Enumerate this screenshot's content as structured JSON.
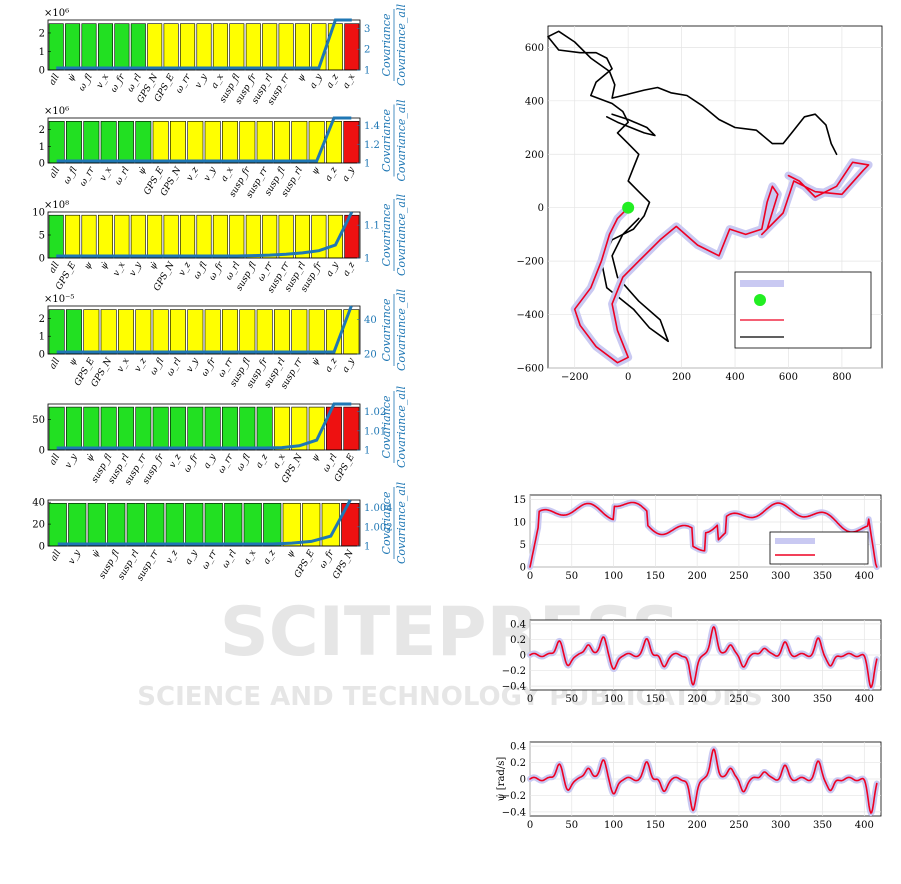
{
  "colors": {
    "green": "#22e022",
    "yellow": "#ffff00",
    "red": "#ee1111",
    "blue": "#1f77b4",
    "lilac": "#c9c9f2",
    "redline": "#ee0022",
    "black": "#000000"
  },
  "watermark": {
    "line1": "SCITEPRESS",
    "line2": "SCIENCE AND TECHNOLOGY PUBLICATIONS"
  },
  "chart_data": [
    {
      "type": "bar",
      "exponent": "×10⁶",
      "ylim": [
        0,
        2.7
      ],
      "yticks": [
        "0",
        "1",
        "2"
      ],
      "ylabel_right": "Covariance / Covariance_all",
      "y2ticks": [
        "1",
        "2",
        "3"
      ],
      "categories": [
        "all",
        "ψ̇",
        "ω_fl",
        "v_x",
        "ω_fr",
        "ω_rl",
        "GPS_N",
        "GPS_E",
        "ω_rr",
        "v_y",
        "a_x",
        "susp_fl",
        "susp_fr",
        "susp_rl",
        "susp_rr",
        "ψ",
        "a_y",
        "a_z",
        "a_x"
      ],
      "values": [
        2.5,
        2.5,
        2.5,
        2.5,
        2.5,
        2.5,
        2.5,
        2.5,
        2.5,
        2.5,
        2.5,
        2.5,
        2.5,
        2.5,
        2.5,
        2.5,
        2.5,
        2.5,
        2.5
      ],
      "colors": [
        "G",
        "G",
        "G",
        "G",
        "G",
        "G",
        "Y",
        "Y",
        "Y",
        "Y",
        "Y",
        "Y",
        "Y",
        "Y",
        "Y",
        "Y",
        "Y",
        "Y",
        "R"
      ],
      "line_pos": [
        0,
        0,
        0,
        0,
        0,
        0,
        0,
        0,
        0,
        0,
        0,
        0,
        0,
        0,
        0,
        0,
        0,
        1.05,
        1.05
      ]
    },
    {
      "type": "bar",
      "exponent": "×10⁶",
      "ylim": [
        0,
        2.7
      ],
      "yticks": [
        "0",
        "1",
        "2"
      ],
      "ylabel_right": "Covariance / Covariance_all",
      "y2ticks": [
        "1",
        "1.2",
        "1.4"
      ],
      "categories": [
        "all",
        "ω_fl",
        "ω_rr",
        "v_x",
        "ω_rl",
        "ψ̇",
        "GPS_E",
        "GPS_N",
        "v_z",
        "v_y",
        "a_x",
        "susp_fr",
        "susp_rr",
        "susp_fl",
        "susp_rl",
        "ψ",
        "a_z",
        "a_y"
      ],
      "values": [
        2.5,
        2.5,
        2.5,
        2.5,
        2.5,
        2.5,
        2.5,
        2.5,
        2.5,
        2.5,
        2.5,
        2.5,
        2.5,
        2.5,
        2.5,
        2.5,
        2.5,
        2.5
      ],
      "colors": [
        "G",
        "G",
        "G",
        "G",
        "G",
        "G",
        "Y",
        "Y",
        "Y",
        "Y",
        "Y",
        "Y",
        "Y",
        "Y",
        "Y",
        "Y",
        "Y",
        "R"
      ],
      "line_pos": [
        0,
        0,
        0,
        0,
        0,
        0,
        0,
        0,
        0,
        0,
        0,
        0,
        0,
        0,
        0,
        0,
        1.05,
        1.05
      ]
    },
    {
      "type": "bar",
      "exponent": "×10⁸",
      "ylim": [
        0,
        10
      ],
      "yticks": [
        "0",
        "5",
        "10"
      ],
      "ylabel_right": "Covariance / Covariance_all",
      "y2ticks": [
        "1",
        "1.1"
      ],
      "categories": [
        "all",
        "GPS_E",
        "ψ",
        "ψ̇",
        "v_x",
        "v_y",
        "ψ̇",
        "GPS_N",
        "v_z",
        "ω_fl",
        "ω_fr",
        "ω_rl",
        "susp_fl",
        "ω_rr",
        "susp_rr",
        "susp_rl",
        "susp_fr",
        "a_y",
        "a_z"
      ],
      "values": [
        9.3,
        9.3,
        9.3,
        9.3,
        9.3,
        9.3,
        9.3,
        9.3,
        9.3,
        9.3,
        9.3,
        9.3,
        9.3,
        9.3,
        9.3,
        9.3,
        9.3,
        9.3,
        9.3
      ],
      "colors": [
        "G",
        "Y",
        "Y",
        "Y",
        "Y",
        "Y",
        "Y",
        "Y",
        "Y",
        "Y",
        "Y",
        "Y",
        "Y",
        "Y",
        "Y",
        "Y",
        "Y",
        "Y",
        "R"
      ],
      "line_pos": [
        0,
        0,
        0,
        0,
        0,
        0,
        0,
        0,
        0,
        0,
        0,
        0,
        0.01,
        0.02,
        0.04,
        0.07,
        0.12,
        0.25,
        1.05
      ]
    },
    {
      "type": "bar",
      "exponent": "×10⁻⁵",
      "ylim": [
        0,
        2.7
      ],
      "yticks": [
        "0",
        "1",
        "2"
      ],
      "ylabel_right": "Covariance / Covariance_all",
      "y2ticks": [
        "20",
        "40"
      ],
      "categories": [
        "all",
        "ψ",
        "GPS_E",
        "GPS_N",
        "v_x",
        "v_z",
        "ω_fl",
        "ω_rl",
        "v_y",
        "ω_fr",
        "ω_rr",
        "susp_fl",
        "susp_fr",
        "susp_rl",
        "susp_rr",
        "ψ̇",
        "a_z",
        "a_y"
      ],
      "values": [
        2.5,
        2.5,
        2.5,
        2.5,
        2.5,
        2.5,
        2.5,
        2.5,
        2.5,
        2.5,
        2.5,
        2.5,
        2.5,
        2.5,
        2.5,
        2.5,
        2.5,
        2.5
      ],
      "colors": [
        "G",
        "G",
        "Y",
        "Y",
        "Y",
        "Y",
        "Y",
        "Y",
        "Y",
        "Y",
        "Y",
        "Y",
        "Y",
        "Y",
        "Y",
        "Y",
        "Y",
        "Y"
      ],
      "line_pos": [
        0,
        0,
        0,
        0,
        0,
        0,
        0,
        0,
        0,
        0,
        0,
        0,
        0,
        0,
        0,
        0,
        0,
        1.05
      ]
    },
    {
      "type": "bar",
      "exponent": "",
      "ylim": [
        0,
        75
      ],
      "yticks": [
        "0",
        "50"
      ],
      "ylabel_right": "Covariance / Covariance_all",
      "y2ticks": [
        "1",
        "1.01",
        "1.02"
      ],
      "categories": [
        "all",
        "v_y",
        "ψ̇",
        "susp_fl",
        "susp_rl",
        "susp_rr",
        "susp_fr",
        "v_z",
        "ω_fr",
        "a_y",
        "ω_rr",
        "ω_fl",
        "a_z",
        "a_x",
        "GPS_N",
        "ψ",
        "ω_rl",
        "GPS_E"
      ],
      "values": [
        70,
        70,
        70,
        70,
        70,
        70,
        70,
        70,
        70,
        70,
        70,
        70,
        70,
        70,
        70,
        70,
        70,
        70
      ],
      "colors": [
        "G",
        "G",
        "G",
        "G",
        "G",
        "G",
        "G",
        "G",
        "G",
        "G",
        "G",
        "G",
        "G",
        "Y",
        "Y",
        "Y",
        "R",
        "R"
      ],
      "line_pos": [
        0,
        0,
        0,
        0,
        0,
        0,
        0,
        0,
        0,
        0,
        0,
        0,
        0,
        0.01,
        0.05,
        0.18,
        1.05,
        1.05
      ]
    },
    {
      "type": "bar",
      "exponent": "",
      "ylim": [
        0,
        42
      ],
      "yticks": [
        "0",
        "20",
        "40"
      ],
      "ylabel_right": "Covariance / Covariance_all",
      "y2ticks": [
        "1",
        "1.002",
        "1.004"
      ],
      "categories": [
        "all",
        "v_y",
        "ψ̇",
        "susp_fl",
        "susp_rl",
        "susp_rr",
        "v_z",
        "a_y",
        "ω_rr",
        "ω_rl",
        "a_x",
        "a_z",
        "ψ",
        "GPS_E",
        "ω_fr",
        "GPS_N"
      ],
      "values": [
        39,
        39,
        39,
        39,
        39,
        39,
        39,
        39,
        39,
        39,
        39,
        39,
        39,
        39,
        39,
        39
      ],
      "colors": [
        "G",
        "G",
        "G",
        "G",
        "G",
        "G",
        "G",
        "G",
        "G",
        "G",
        "G",
        "G",
        "Y",
        "Y",
        "Y",
        "R"
      ],
      "line_pos": [
        0,
        0,
        0,
        0,
        0,
        0,
        0,
        0,
        0,
        0,
        0,
        0,
        0.02,
        0.06,
        0.18,
        1.05
      ]
    },
    {
      "type": "line",
      "xlim": [
        -300,
        950
      ],
      "ylim": [
        -600,
        680
      ],
      "xticks": [
        "−200",
        "0",
        "200",
        "400",
        "600",
        "800"
      ],
      "yticks": [
        "600",
        "400",
        "200",
        "0",
        "−200",
        "−400",
        "−600"
      ]
    },
    {
      "type": "line",
      "xlim": [
        0,
        420
      ],
      "ylim": [
        0,
        16
      ],
      "xticks": [
        "0",
        "50",
        "100",
        "150",
        "200",
        "250",
        "300",
        "350",
        "400"
      ],
      "yticks": [
        "0",
        "5",
        "10",
        "15"
      ]
    },
    {
      "type": "line",
      "xlim": [
        0,
        420
      ],
      "ylim": [
        -0.45,
        0.45
      ],
      "xticks": [
        "0",
        "50",
        "100",
        "150",
        "200",
        "250",
        "300",
        "350",
        "400"
      ],
      "yticks": [
        "0.4",
        "0.2",
        "0",
        "−0.2",
        "−0.4"
      ]
    },
    {
      "type": "line",
      "xlim": [
        0,
        420
      ],
      "ylim": [
        -0.45,
        0.45
      ],
      "ylabel": "ψ̇ [rad/s]",
      "xticks": [
        "0",
        "50",
        "100",
        "150",
        "200",
        "250",
        "300",
        "350",
        "400"
      ],
      "yticks": [
        "0.4",
        "0.2",
        "0",
        "−0.2",
        "−0.4"
      ]
    }
  ]
}
